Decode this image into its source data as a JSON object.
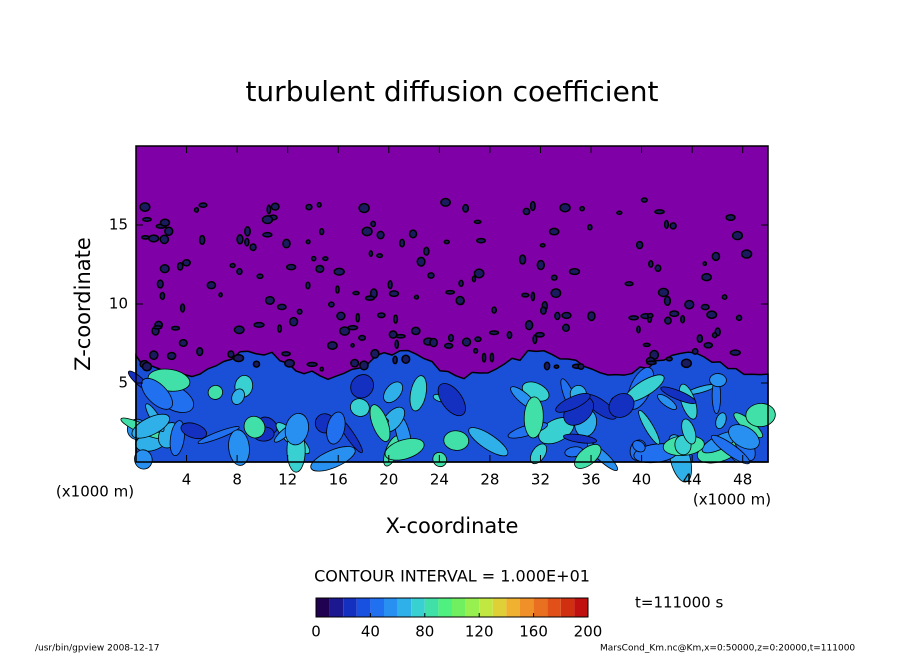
{
  "chart_data": {
    "type": "contour",
    "title": "turbulent diffusion coefficient",
    "xlabel": "X-coordinate",
    "ylabel": "Z-coordinate",
    "x_unit_left": "(x1000 m)",
    "x_unit_right": "(x1000 m)",
    "xlim": [
      0,
      50
    ],
    "xticks": [
      4,
      8,
      12,
      16,
      20,
      24,
      28,
      32,
      36,
      40,
      44,
      48
    ],
    "ylim": [
      0,
      20
    ],
    "yticks": [
      5,
      10,
      15
    ],
    "contour_interval_text": "CONTOUR INTERVAL = 1.000E+01",
    "time_text": "t=111000 s",
    "colorbar": {
      "lim": [
        0,
        200
      ],
      "ticks": [
        0,
        40,
        80,
        120,
        160,
        200
      ],
      "colors": [
        "#200050",
        "#1c1890",
        "#1430c0",
        "#1850e0",
        "#2070f0",
        "#2890f0",
        "#30b0e8",
        "#38d0d0",
        "#40e0a8",
        "#50f080",
        "#70f060",
        "#98f050",
        "#c0e840",
        "#e0d038",
        "#f0b030",
        "#f09028",
        "#e87020",
        "#e05018",
        "#d03010",
        "#c01010"
      ]
    },
    "footer_left": "/usr/bin/gpview  2008-12-17",
    "footer_right": "MarsCond_Km.nc@Km,x=0:50000,z=0:20000,t=111000"
  }
}
